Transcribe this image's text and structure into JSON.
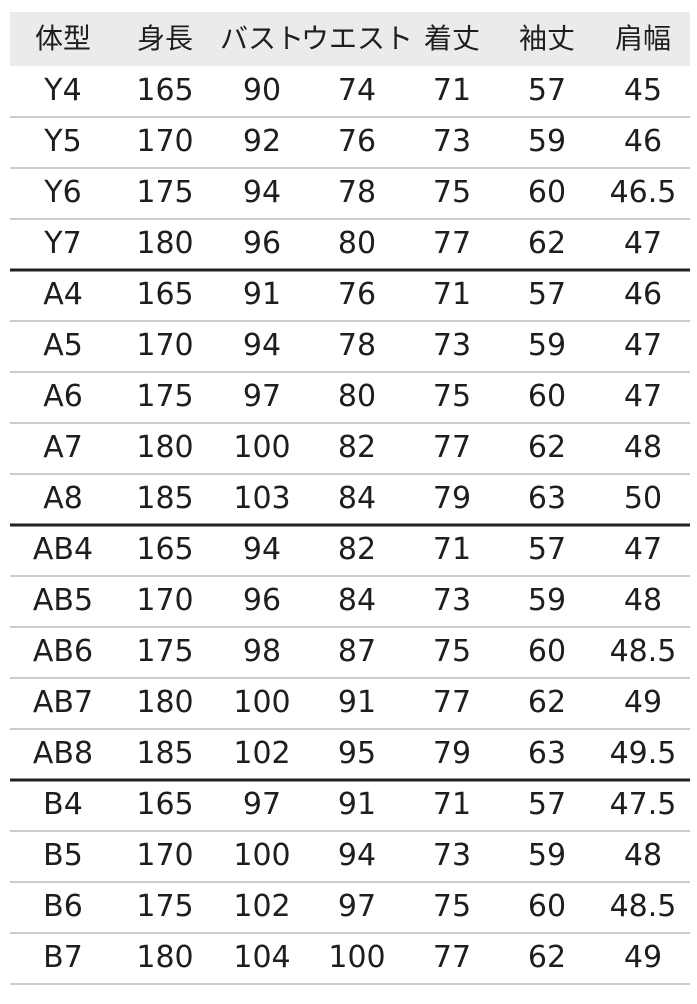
{
  "table": {
    "header": [
      "体型",
      "身長",
      "バスト",
      "ウエスト",
      "着丈",
      "袖丈",
      "肩幅"
    ],
    "groups": [
      [
        [
          "Y4",
          165,
          90,
          74,
          71,
          57,
          45
        ],
        [
          "Y5",
          170,
          92,
          76,
          73,
          59,
          46
        ],
        [
          "Y6",
          175,
          94,
          78,
          75,
          60,
          46.5
        ],
        [
          "Y7",
          180,
          96,
          80,
          77,
          62,
          47
        ]
      ],
      [
        [
          "A4",
          165,
          91,
          76,
          71,
          57,
          46
        ],
        [
          "A5",
          170,
          94,
          78,
          73,
          59,
          47
        ],
        [
          "A6",
          175,
          97,
          80,
          75,
          60,
          47
        ],
        [
          "A7",
          180,
          100,
          82,
          77,
          62,
          48
        ],
        [
          "A8",
          185,
          103,
          84,
          79,
          63,
          50
        ]
      ],
      [
        [
          "AB4",
          165,
          94,
          82,
          71,
          57,
          47
        ],
        [
          "AB5",
          170,
          96,
          84,
          73,
          59,
          48
        ],
        [
          "AB6",
          175,
          98,
          87,
          75,
          60,
          48.5
        ],
        [
          "AB7",
          180,
          100,
          91,
          77,
          62,
          49
        ],
        [
          "AB8",
          185,
          102,
          95,
          79,
          63,
          49.5
        ]
      ],
      [
        [
          "B4",
          165,
          97,
          91,
          71,
          57,
          47.5
        ],
        [
          "B5",
          170,
          100,
          94,
          73,
          59,
          48
        ],
        [
          "B6",
          175,
          102,
          97,
          75,
          60,
          48.5
        ],
        [
          "B7",
          180,
          104,
          100,
          77,
          62,
          49
        ]
      ]
    ]
  }
}
